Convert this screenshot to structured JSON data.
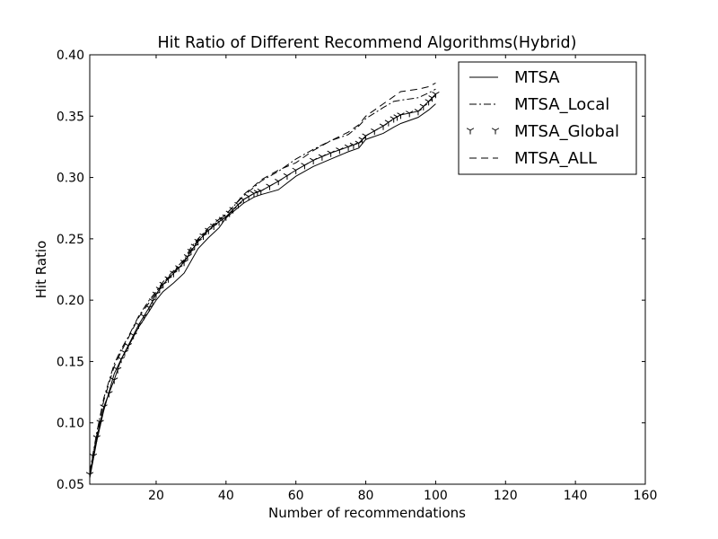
{
  "chart_data": {
    "type": "line",
    "title": "Hit Ratio of Different Recommend Algorithms(Hybrid)",
    "xlabel": "Number of recommendations",
    "ylabel": "Hit Ratio",
    "xlim": [
      1,
      160
    ],
    "ylim": [
      0.05,
      0.4
    ],
    "xticks": [
      20,
      40,
      60,
      80,
      100,
      120,
      140,
      160
    ],
    "xtick_labels": [
      "20",
      "40",
      "60",
      "80",
      "100",
      "120",
      "140",
      "160"
    ],
    "yticks": [
      0.05,
      0.1,
      0.15,
      0.2,
      0.25,
      0.3,
      0.35,
      0.4
    ],
    "ytick_labels": [
      "0.05",
      "0.10",
      "0.15",
      "0.20",
      "0.25",
      "0.30",
      "0.35",
      "0.40"
    ],
    "grid": false,
    "legend_position": "top-right",
    "x": [
      1,
      3,
      5,
      8,
      10,
      12,
      15,
      18,
      20,
      22,
      25,
      28,
      30,
      32,
      35,
      38,
      40,
      42,
      45,
      48,
      50,
      55,
      60,
      65,
      70,
      75,
      78,
      80,
      85,
      88,
      90,
      95,
      98,
      100
    ],
    "series": [
      {
        "name": "MTSA",
        "style": "solid",
        "values": [
          0.055,
          0.085,
          0.11,
          0.14,
          0.152,
          0.162,
          0.178,
          0.191,
          0.2,
          0.207,
          0.214,
          0.222,
          0.232,
          0.242,
          0.251,
          0.259,
          0.267,
          0.272,
          0.279,
          0.284,
          0.286,
          0.29,
          0.301,
          0.309,
          0.315,
          0.321,
          0.324,
          0.331,
          0.336,
          0.341,
          0.344,
          0.349,
          0.355,
          0.36
        ]
      },
      {
        "name": "MTSA_Local",
        "style": "dashdot",
        "values": [
          0.06,
          0.092,
          0.12,
          0.148,
          0.16,
          0.17,
          0.187,
          0.2,
          0.207,
          0.215,
          0.224,
          0.233,
          0.243,
          0.25,
          0.259,
          0.266,
          0.27,
          0.276,
          0.285,
          0.292,
          0.297,
          0.305,
          0.315,
          0.323,
          0.33,
          0.335,
          0.342,
          0.348,
          0.357,
          0.362,
          0.363,
          0.365,
          0.369,
          0.372
        ]
      },
      {
        "name": "MTSA_Global",
        "style": "tri-marker",
        "values": [
          0.058,
          0.088,
          0.113,
          0.135,
          0.152,
          0.163,
          0.18,
          0.194,
          0.205,
          0.213,
          0.222,
          0.231,
          0.24,
          0.248,
          0.257,
          0.264,
          0.268,
          0.274,
          0.282,
          0.287,
          0.289,
          0.297,
          0.306,
          0.314,
          0.32,
          0.325,
          0.328,
          0.334,
          0.342,
          0.348,
          0.351,
          0.354,
          0.362,
          0.368
        ]
      },
      {
        "name": "MTSA_ALL",
        "style": "dashed",
        "values": [
          0.059,
          0.09,
          0.118,
          0.146,
          0.158,
          0.169,
          0.186,
          0.198,
          0.206,
          0.214,
          0.223,
          0.232,
          0.241,
          0.249,
          0.258,
          0.265,
          0.27,
          0.276,
          0.286,
          0.293,
          0.298,
          0.306,
          0.312,
          0.322,
          0.33,
          0.337,
          0.343,
          0.35,
          0.36,
          0.366,
          0.37,
          0.372,
          0.374,
          0.377
        ]
      }
    ]
  }
}
